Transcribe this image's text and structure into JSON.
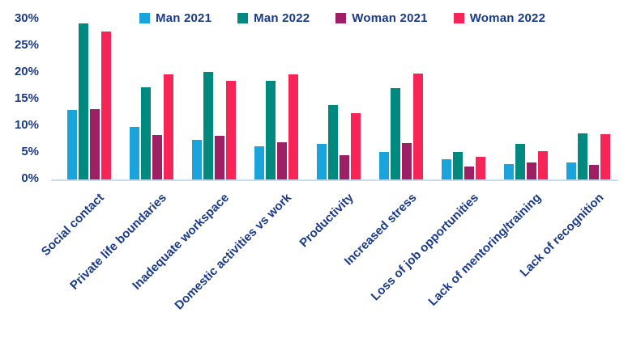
{
  "chart_data": {
    "type": "bar",
    "title": "",
    "categories": [
      "Social contact",
      "Private life boundaries",
      "Inadequate workspace",
      "Domestic activities vs work",
      "Productivity",
      "Increased stress",
      "Loss of job opportunities",
      "Lack of mentoring/training",
      "Lack of recognition"
    ],
    "series": [
      {
        "name": "Man 2021",
        "color": "#1BA3DB",
        "values": [
          12.9,
          9.8,
          7.3,
          6.1,
          6.6,
          5.1,
          3.7,
          2.8,
          3.1
        ]
      },
      {
        "name": "Man 2022",
        "color": "#00897F",
        "values": [
          29.0,
          17.1,
          20.0,
          18.3,
          13.8,
          16.9,
          5.1,
          6.6,
          8.5
        ]
      },
      {
        "name": "Woman 2021",
        "color": "#9E2064",
        "values": [
          13.0,
          8.2,
          8.1,
          6.9,
          4.5,
          6.7,
          2.4,
          3.1,
          2.7
        ]
      },
      {
        "name": "Woman 2022",
        "color": "#F62457",
        "values": [
          27.5,
          19.5,
          18.3,
          19.5,
          12.3,
          19.6,
          4.2,
          5.2,
          8.4
        ]
      }
    ],
    "ylim": [
      0,
      30
    ],
    "yticks": [
      0,
      5,
      10,
      15,
      20,
      25,
      30
    ],
    "ytick_suffix": "%",
    "grid": false,
    "legend_position": "top",
    "colors": {
      "label_text": "#19398A",
      "axis_line": "#C5DCF3",
      "background": "#FFFFFF"
    }
  }
}
